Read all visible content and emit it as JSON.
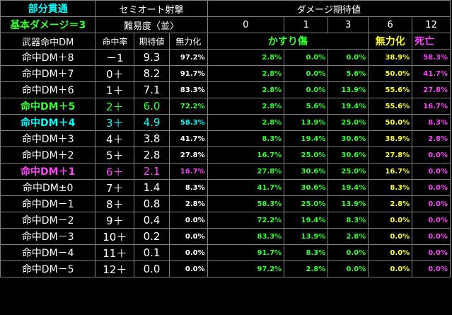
{
  "header": {
    "title1": "部分貫通",
    "title2": "基本ダメージ＝3",
    "semiauto": "セミオート射撃",
    "difficulty": "難易度〈並〉",
    "damage_expect": "ダメージ期待値",
    "col_weapon": "武器命中DM",
    "col_hitrate": "命中率",
    "col_expect": "期待値",
    "col_neutral": "無力化",
    "damage_cols": [
      "0",
      "1",
      "3",
      "6",
      "12"
    ],
    "cat_graze": "かすり傷",
    "cat_neutral": "無力化",
    "cat_death": "死亡"
  },
  "rows": [
    {
      "dm": "命中DM＋8",
      "req": "－1",
      "exp": "9.3",
      "neu": "97.2%",
      "d": [
        "2.8%",
        "0.0%",
        "0.0%",
        "38.9%",
        "58.3%"
      ],
      "hl": "none"
    },
    {
      "dm": "命中DM＋7",
      "req": "0＋",
      "exp": "8.2",
      "neu": "91.7%",
      "d": [
        "2.8%",
        "0.0%",
        "5.6%",
        "50.0%",
        "41.7%"
      ],
      "hl": "none"
    },
    {
      "dm": "命中DM＋6",
      "req": "1＋",
      "exp": "7.1",
      "neu": "83.3%",
      "d": [
        "2.8%",
        "0.0%",
        "13.9%",
        "55.6%",
        "27.8%"
      ],
      "hl": "none"
    },
    {
      "dm": "命中DM＋5",
      "req": "2＋",
      "exp": "6.0",
      "neu": "72.2%",
      "d": [
        "2.8%",
        "5.6%",
        "19.4%",
        "55.6%",
        "16.7%"
      ],
      "hl": "green"
    },
    {
      "dm": "命中DM＋4",
      "req": "3＋",
      "exp": "4.9",
      "neu": "58.3%",
      "d": [
        "2.8%",
        "13.9%",
        "25.0%",
        "50.0%",
        "8.3%"
      ],
      "hl": "cyan"
    },
    {
      "dm": "命中DM＋3",
      "req": "4＋",
      "exp": "3.8",
      "neu": "41.7%",
      "d": [
        "8.3%",
        "19.4%",
        "30.6%",
        "38.9%",
        "2.8%"
      ],
      "hl": "none"
    },
    {
      "dm": "命中DM＋2",
      "req": "5＋",
      "exp": "2.8",
      "neu": "27.8%",
      "d": [
        "16.7%",
        "25.0%",
        "30.6%",
        "27.8%",
        "0.0%"
      ],
      "hl": "none"
    },
    {
      "dm": "命中DM＋1",
      "req": "6＋",
      "exp": "2.1",
      "neu": "16.7%",
      "d": [
        "27.8%",
        "30.6%",
        "25.0%",
        "16.7%",
        "0.0%"
      ],
      "hl": "magenta"
    },
    {
      "dm": "命中DM±0",
      "req": "7＋",
      "exp": "1.4",
      "neu": "8.3%",
      "d": [
        "41.7%",
        "30.6%",
        "19.4%",
        "8.3%",
        "0.0%"
      ],
      "hl": "none"
    },
    {
      "dm": "命中DM－1",
      "req": "8＋",
      "exp": "0.8",
      "neu": "2.8%",
      "d": [
        "58.3%",
        "25.0%",
        "13.9%",
        "2.8%",
        "0.0%"
      ],
      "hl": "none"
    },
    {
      "dm": "命中DM－2",
      "req": "9＋",
      "exp": "0.4",
      "neu": "0.0%",
      "d": [
        "72.2%",
        "19.4%",
        "8.3%",
        "0.0%",
        "0.0%"
      ],
      "hl": "none"
    },
    {
      "dm": "命中DM－3",
      "req": "10＋",
      "exp": "0.2",
      "neu": "0.0%",
      "d": [
        "83.3%",
        "13.9%",
        "2.8%",
        "0.0%",
        "0.0%"
      ],
      "hl": "none"
    },
    {
      "dm": "命中DM－4",
      "req": "11＋",
      "exp": "0.1",
      "neu": "0.0%",
      "d": [
        "91.7%",
        "8.3%",
        "0.0%",
        "0.0%",
        "0.0%"
      ],
      "hl": "none"
    },
    {
      "dm": "命中DM－5",
      "req": "12＋",
      "exp": "0.0",
      "neu": "0.0%",
      "d": [
        "97.2%",
        "2.8%",
        "0.0%",
        "0.0%",
        "0.0%"
      ],
      "hl": "none"
    }
  ],
  "colors": {
    "cyan": "#00ffff",
    "green": "#33ff33",
    "yellow": "#ffff33",
    "magenta": "#ff44ff",
    "white": "#ffffff",
    "grid": "#808080",
    "background": "#000000"
  }
}
